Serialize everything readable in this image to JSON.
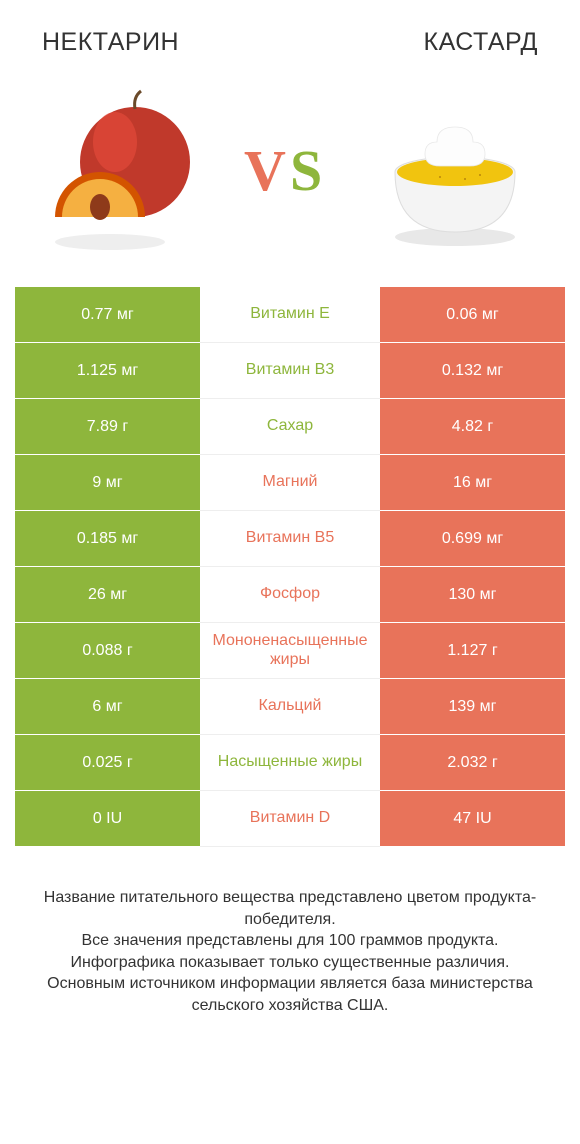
{
  "colors": {
    "left": "#8eb63c",
    "right": "#e8735a",
    "bg": "#ffffff",
    "mid_border": "#eeeeee"
  },
  "header": {
    "left_title": "НЕКТАРИН",
    "right_title": "КАСТАРД",
    "vs_text": "VS"
  },
  "rows": [
    {
      "left": "0.77 мг",
      "name": "Витамин E",
      "right": "0.06 мг",
      "winner": "left"
    },
    {
      "left": "1.125 мг",
      "name": "Витамин B3",
      "right": "0.132 мг",
      "winner": "left"
    },
    {
      "left": "7.89 г",
      "name": "Сахар",
      "right": "4.82 г",
      "winner": "left"
    },
    {
      "left": "9 мг",
      "name": "Магний",
      "right": "16 мг",
      "winner": "right"
    },
    {
      "left": "0.185 мг",
      "name": "Витамин B5",
      "right": "0.699 мг",
      "winner": "right"
    },
    {
      "left": "26 мг",
      "name": "Фосфор",
      "right": "130 мг",
      "winner": "right"
    },
    {
      "left": "0.088 г",
      "name": "Мононенасыщенные жиры",
      "right": "1.127 г",
      "winner": "right"
    },
    {
      "left": "6 мг",
      "name": "Кальций",
      "right": "139 мг",
      "winner": "right"
    },
    {
      "left": "0.025 г",
      "name": "Насыщенные жиры",
      "right": "2.032 г",
      "winner": "left"
    },
    {
      "left": "0 IU",
      "name": "Витамин D",
      "right": "47 IU",
      "winner": "right"
    }
  ],
  "footer": {
    "line1": "Название питательного вещества представлено цветом продукта-победителя.",
    "line2": "Все значения представлены для 100 граммов продукта.",
    "line3": "Инфографика показывает только существенные различия.",
    "line4": "Основным источником информации является база министерства сельского хозяйства США."
  }
}
